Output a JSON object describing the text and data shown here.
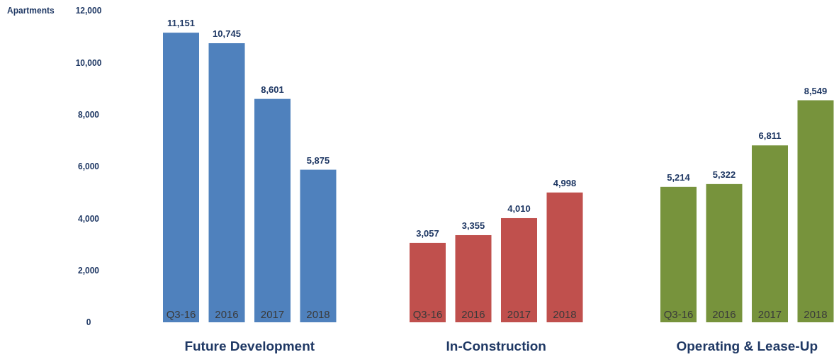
{
  "chart_data": [
    {
      "type": "bar",
      "ylabel": "Apartments",
      "xlabel": "Future Development",
      "categories": [
        "Q3-16",
        "2016",
        "2017",
        "2018"
      ],
      "values": [
        11151,
        10745,
        8601,
        5875
      ],
      "value_labels": [
        "11,151",
        "10,745",
        "8,601",
        "5,875"
      ],
      "color": "#4f81bd",
      "ylim": [
        0,
        12000
      ],
      "yticks": [
        {
          "value": 0,
          "label": "0"
        },
        {
          "value": 2000,
          "label": "2,000"
        },
        {
          "value": 4000,
          "label": "4,000"
        },
        {
          "value": 6000,
          "label": "6,000"
        },
        {
          "value": 8000,
          "label": "8,000"
        },
        {
          "value": 10000,
          "label": "10,000"
        },
        {
          "value": 12000,
          "label": "12,000"
        }
      ]
    },
    {
      "type": "bar",
      "xlabel": "In-Construction",
      "categories": [
        "Q3-16",
        "2016",
        "2017",
        "2018"
      ],
      "values": [
        3057,
        3355,
        4010,
        4998
      ],
      "value_labels": [
        "3,057",
        "3,355",
        "4,010",
        "4,998"
      ],
      "color": "#c0504d",
      "ylim": [
        0,
        12000
      ],
      "tick_labels": "x"
    },
    {
      "type": "bar",
      "xlabel": "Operating & Lease-Up",
      "categories": [
        "Q3-16",
        "2016",
        "2017",
        "2018"
      ],
      "values": [
        5214,
        5322,
        6811,
        8549
      ],
      "value_labels": [
        "5,214",
        "5,322",
        "6,811",
        "8,549"
      ],
      "color": "#77933c",
      "ylim": [
        0,
        12000
      ],
      "tick_labels": "x"
    }
  ]
}
